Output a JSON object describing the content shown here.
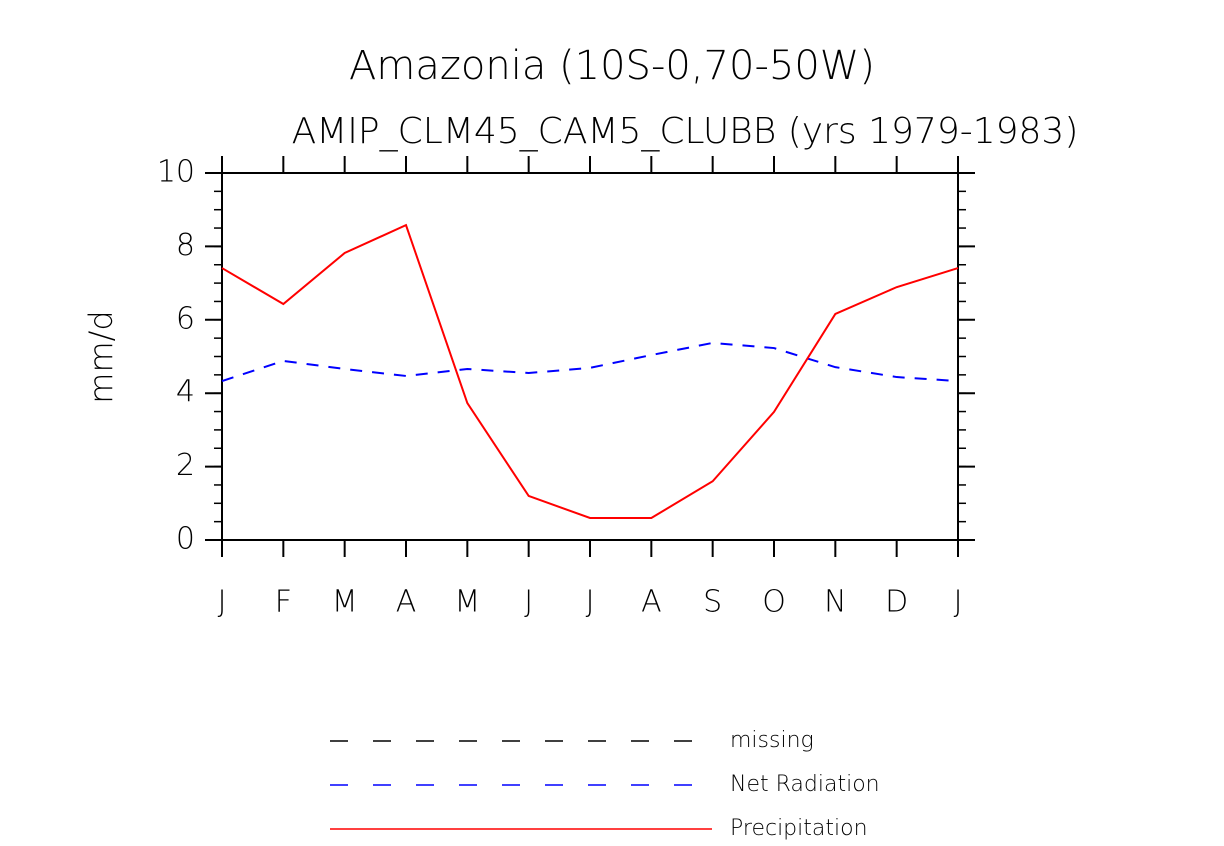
{
  "chart_data": {
    "type": "line",
    "title": "Amazonia (10S-0,70-50W)",
    "subtitle": "AMIP_CLM45_CAM5_CLUBB (yrs 1979-1983)",
    "y_label": "mm/d",
    "categories": [
      "J",
      "F",
      "M",
      "A",
      "M",
      "J",
      "J",
      "A",
      "S",
      "O",
      "N",
      "D",
      "J"
    ],
    "series": [
      {
        "name": "missing",
        "color": "#000000",
        "dash": true,
        "values": [
          null,
          null,
          null,
          null,
          null,
          null,
          null,
          null,
          null,
          null,
          null,
          null,
          null
        ]
      },
      {
        "name": "Net Radiation",
        "color": "#0000ff",
        "dash": true,
        "values": [
          4.33,
          4.88,
          4.66,
          4.47,
          4.66,
          4.55,
          4.69,
          5.04,
          5.37,
          5.23,
          4.71,
          4.44,
          4.33
        ]
      },
      {
        "name": "Precipitation",
        "color": "#ff0000",
        "dash": false,
        "values": [
          7.41,
          6.43,
          7.82,
          8.58,
          3.73,
          1.2,
          0.6,
          0.6,
          1.6,
          3.49,
          6.16,
          6.89,
          7.41
        ]
      }
    ],
    "ylim": [
      0,
      10
    ],
    "yticks": [
      0,
      2,
      4,
      6,
      8,
      10
    ]
  }
}
